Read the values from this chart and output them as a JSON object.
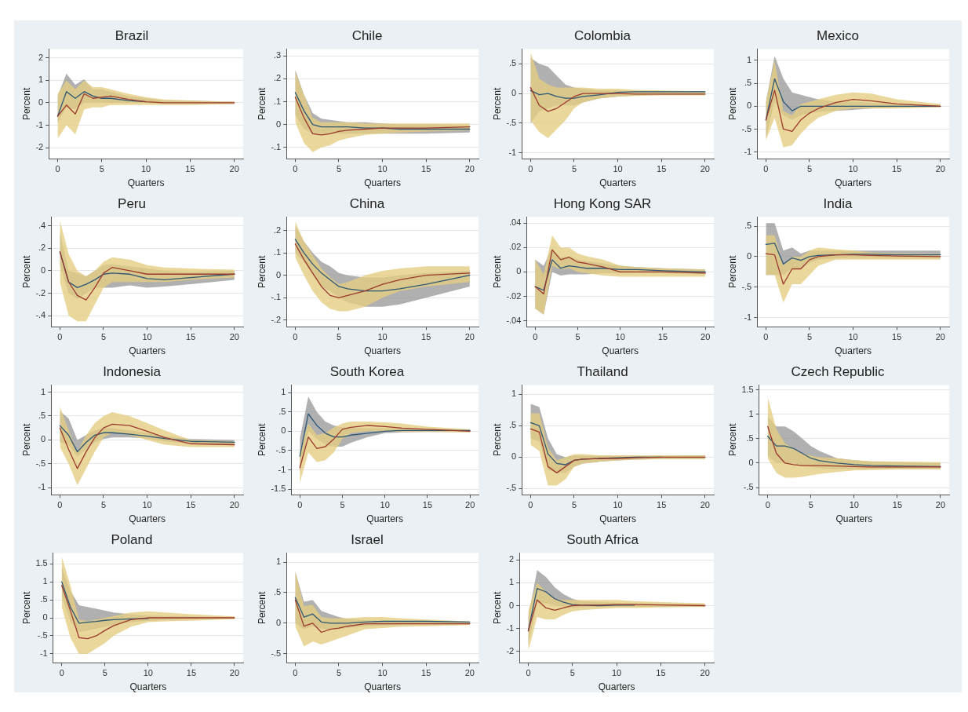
{
  "chart_data": [
    {
      "type": "line",
      "title": "Brazil",
      "xlabel": "Quarters",
      "ylabel": "Percent",
      "x": [
        0,
        1,
        2,
        3,
        4,
        5,
        6,
        8,
        10,
        12,
        15,
        20
      ],
      "xlim": [
        -1,
        21
      ],
      "xticks": [
        0,
        5,
        10,
        15,
        20
      ],
      "ylim": [
        -2.5,
        2.4
      ],
      "yticks": [
        -2,
        -1,
        0,
        1,
        2
      ],
      "grid": "y",
      "legend": false,
      "series": [
        {
          "color": "#2d5775",
          "values": [
            -0.6,
            0.5,
            0.2,
            0.5,
            0.3,
            0.2,
            0.2,
            0.1,
            0.05,
            null,
            null,
            null
          ],
          "lower": [
            -0.9,
            -0.2,
            -0.3,
            0,
            0,
            0,
            0,
            0,
            0,
            -0.05,
            -0.05,
            -0.05
          ],
          "upper": [
            0.3,
            1.3,
            0.8,
            1.05,
            0.6,
            0.6,
            0.5,
            0.3,
            0.2,
            0.1,
            0.1,
            0.05
          ]
        },
        {
          "color": "#9c3a2e",
          "values": [
            -0.6,
            -0.1,
            -0.5,
            0.4,
            0.2,
            0.25,
            0.3,
            0.15,
            0.05,
            0,
            0,
            0
          ],
          "lower": [
            -1.6,
            -1.0,
            -1.4,
            -0.3,
            -0.2,
            -0.2,
            -0.1,
            -0.1,
            -0.1,
            -0.1,
            -0.1,
            -0.05
          ],
          "upper": [
            0.4,
            1.0,
            0.6,
            1.0,
            0.7,
            0.7,
            0.6,
            0.4,
            0.25,
            0.15,
            0.1,
            0.05
          ]
        }
      ]
    },
    {
      "type": "line",
      "title": "Chile",
      "xlabel": "Quarters",
      "ylabel": "Percent",
      "x": [
        0,
        1,
        2,
        3,
        4,
        5,
        6,
        8,
        10,
        12,
        15,
        20
      ],
      "xlim": [
        -1,
        21
      ],
      "xticks": [
        0,
        5,
        10,
        15,
        20
      ],
      "ylim": [
        -0.15,
        0.33
      ],
      "yticks": [
        {
          "value": -0.1,
          "label": "-.1"
        },
        0,
        {
          "value": 0.1,
          "label": ".1"
        },
        {
          "value": 0.2,
          "label": ".2"
        },
        {
          "value": 0.3,
          "label": ".3"
        }
      ],
      "grid": "y",
      "legend": false,
      "series": [
        {
          "color": "#2d5775",
          "values": [
            0.14,
            0.06,
            0,
            -0.01,
            -0.01,
            -0.01,
            -0.01,
            -0.015,
            -0.015,
            -0.02,
            -0.02,
            -0.02
          ],
          "lower": [
            0.04,
            -0.02,
            -0.04,
            -0.04,
            -0.04,
            -0.04,
            -0.04,
            -0.04,
            -0.04,
            -0.04,
            -0.04,
            -0.035
          ],
          "upper": [
            0.24,
            0.13,
            0.05,
            0.025,
            0.02,
            0.015,
            0.01,
            0.01,
            0.005,
            0,
            0,
            -0.005
          ]
        },
        {
          "color": "#9c3a2e",
          "values": [
            0.12,
            0.03,
            -0.04,
            -0.045,
            -0.04,
            -0.03,
            -0.025,
            -0.02,
            -0.015,
            -0.015,
            -0.015,
            -0.01
          ],
          "lower": [
            0.01,
            -0.08,
            -0.12,
            -0.1,
            -0.09,
            -0.07,
            -0.06,
            -0.045,
            -0.04,
            -0.035,
            -0.03,
            -0.025
          ],
          "upper": [
            0.23,
            0.13,
            0.03,
            0.01,
            0.01,
            0.01,
            0.01,
            0.005,
            0.005,
            0.005,
            0.005,
            0.005
          ]
        }
      ]
    },
    {
      "type": "line",
      "title": "Colombia",
      "xlabel": "Quarters",
      "ylabel": "Percent",
      "x": [
        0,
        1,
        2,
        3,
        4,
        5,
        6,
        8,
        10,
        12,
        15,
        20
      ],
      "xlim": [
        -1,
        21
      ],
      "xticks": [
        0,
        5,
        10,
        15,
        20
      ],
      "ylim": [
        -1.1,
        0.75
      ],
      "yticks": [
        -1,
        {
          "value": -0.5,
          "label": "-.5"
        },
        0,
        {
          "value": 0.5,
          "label": ".5"
        }
      ],
      "grid": "y",
      "legend": false,
      "series": [
        {
          "color": "#2d5775",
          "values": [
            0.05,
            -0.02,
            0,
            -0.05,
            -0.08,
            -0.08,
            -0.05,
            -0.02,
            0.02,
            0.03,
            0.03,
            0.03
          ],
          "lower": [
            -0.5,
            -0.3,
            -0.25,
            -0.2,
            -0.2,
            -0.2,
            -0.15,
            -0.08,
            -0.05,
            -0.03,
            -0.02,
            -0.02
          ],
          "upper": [
            0.6,
            0.5,
            0.45,
            0.3,
            0.15,
            0.1,
            0.08,
            0.05,
            0.05,
            0.04,
            0.04,
            0.04
          ]
        },
        {
          "color": "#9c3a2e",
          "values": [
            0.1,
            -0.2,
            -0.3,
            -0.25,
            -0.15,
            -0.05,
            0,
            0,
            0,
            -0.01,
            -0.01,
            -0.01
          ],
          "lower": [
            -0.45,
            -0.65,
            -0.75,
            -0.6,
            -0.45,
            -0.25,
            -0.15,
            -0.08,
            -0.05,
            -0.04,
            -0.03,
            -0.03
          ],
          "upper": [
            0.7,
            0.25,
            0.15,
            0.1,
            0.1,
            0.1,
            0.1,
            0.08,
            0.08,
            0.06,
            0.05,
            0.04
          ]
        }
      ]
    },
    {
      "type": "line",
      "title": "Mexico",
      "xlabel": "Quarters",
      "ylabel": "Percent",
      "x": [
        0,
        1,
        2,
        3,
        4,
        5,
        6,
        8,
        10,
        12,
        15,
        20
      ],
      "xlim": [
        -1,
        21
      ],
      "xticks": [
        0,
        5,
        10,
        15,
        20
      ],
      "ylim": [
        -1.15,
        1.25
      ],
      "yticks": [
        -1,
        {
          "value": -0.5,
          "label": "-.5"
        },
        0,
        {
          "value": 0.5,
          "label": ".5"
        },
        1
      ],
      "grid": "y",
      "legend": false,
      "series": [
        {
          "color": "#2d5775",
          "values": [
            -0.3,
            0.6,
            0.1,
            -0.1,
            0,
            0,
            0,
            0,
            0,
            0,
            0,
            0
          ],
          "lower": [
            -0.7,
            0.1,
            -0.2,
            -0.3,
            -0.2,
            -0.15,
            -0.12,
            -0.1,
            -0.08,
            -0.05,
            -0.03,
            -0.02
          ],
          "upper": [
            0.1,
            1.1,
            0.6,
            0.3,
            0.25,
            0.2,
            0.15,
            0.1,
            0.1,
            0.08,
            0.05,
            0.03
          ]
        },
        {
          "color": "#9c3a2e",
          "values": [
            -0.3,
            0.35,
            -0.5,
            -0.55,
            -0.3,
            -0.15,
            -0.05,
            0.08,
            0.15,
            0.12,
            0.05,
            0
          ],
          "lower": [
            -0.75,
            -0.25,
            -0.9,
            -0.85,
            -0.6,
            -0.4,
            -0.25,
            -0.1,
            -0.05,
            -0.05,
            -0.05,
            -0.02
          ],
          "upper": [
            0.1,
            1.0,
            -0.1,
            -0.2,
            0.05,
            0.1,
            0.15,
            0.25,
            0.3,
            0.28,
            0.15,
            0.05
          ]
        }
      ]
    },
    {
      "type": "line",
      "title": "Peru",
      "xlabel": "Quarters",
      "ylabel": "Percent",
      "x": [
        0,
        1,
        2,
        3,
        4,
        5,
        6,
        8,
        10,
        12,
        15,
        20
      ],
      "xlim": [
        -1,
        21
      ],
      "xticks": [
        0,
        5,
        10,
        15,
        20
      ],
      "ylim": [
        -0.5,
        0.48
      ],
      "yticks": [
        {
          "value": -0.4,
          "label": "-.4"
        },
        {
          "value": -0.2,
          "label": "-.2"
        },
        0,
        {
          "value": 0.2,
          "label": ".2"
        },
        {
          "value": 0.4,
          "label": ".4"
        }
      ],
      "grid": "y",
      "legend": false,
      "series": [
        {
          "color": "#2d5775",
          "values": [
            0.17,
            -0.1,
            -0.15,
            -0.12,
            -0.08,
            -0.03,
            -0.02,
            -0.03,
            -0.07,
            -0.08,
            -0.06,
            -0.03
          ],
          "lower": [
            0.05,
            -0.2,
            -0.25,
            -0.2,
            -0.15,
            -0.15,
            -0.15,
            -0.13,
            -0.15,
            -0.14,
            -0.12,
            -0.08
          ],
          "upper": [
            0.35,
            0,
            -0.02,
            -0.05,
            0,
            0.05,
            0.06,
            0.04,
            0.02,
            0,
            -0.01,
            0
          ]
        },
        {
          "color": "#9c3a2e",
          "values": [
            0.17,
            -0.1,
            -0.22,
            -0.26,
            -0.15,
            -0.02,
            0.03,
            0,
            -0.03,
            -0.03,
            -0.03,
            -0.03
          ],
          "lower": [
            -0.1,
            -0.4,
            -0.45,
            -0.45,
            -0.3,
            -0.15,
            -0.1,
            -0.1,
            -0.1,
            -0.1,
            -0.08,
            -0.06
          ],
          "upper": [
            0.45,
            0.15,
            0,
            -0.05,
            0,
            0.08,
            0.12,
            0.1,
            0.05,
            0.03,
            0.02,
            0.01
          ]
        }
      ]
    },
    {
      "type": "line",
      "title": "China",
      "xlabel": "Quarters",
      "ylabel": "Percent",
      "x": [
        0,
        1,
        2,
        3,
        4,
        5,
        6,
        8,
        10,
        12,
        15,
        20
      ],
      "xlim": [
        -1,
        21
      ],
      "xticks": [
        0,
        5,
        10,
        15,
        20
      ],
      "ylim": [
        -0.23,
        0.26
      ],
      "yticks": [
        {
          "value": -0.2,
          "label": "-.2"
        },
        {
          "value": -0.1,
          "label": "-.1"
        },
        0,
        {
          "value": 0.1,
          "label": ".1"
        },
        {
          "value": 0.2,
          "label": ".2"
        }
      ],
      "grid": "y",
      "legend": false,
      "series": [
        {
          "color": "#2d5775",
          "values": [
            0.16,
            0.1,
            0.05,
            0.01,
            -0.02,
            -0.05,
            -0.06,
            -0.07,
            -0.07,
            -0.06,
            -0.04,
            0
          ],
          "lower": [
            0.1,
            0.06,
            0,
            -0.05,
            -0.07,
            -0.1,
            -0.12,
            -0.14,
            -0.14,
            -0.13,
            -0.1,
            -0.05
          ],
          "upper": [
            0.22,
            0.15,
            0.1,
            0.06,
            0.04,
            0.01,
            0,
            -0.01,
            -0.01,
            0,
            0.01,
            0.02
          ]
        },
        {
          "color": "#9c3a2e",
          "values": [
            0.14,
            0.07,
            0.01,
            -0.05,
            -0.09,
            -0.1,
            -0.09,
            -0.07,
            -0.04,
            -0.02,
            0,
            0.01
          ],
          "lower": [
            0.08,
            0,
            -0.07,
            -0.12,
            -0.15,
            -0.16,
            -0.16,
            -0.14,
            -0.1,
            -0.07,
            -0.05,
            -0.03
          ],
          "upper": [
            0.24,
            0.15,
            0.09,
            0.03,
            -0.01,
            -0.04,
            -0.03,
            0,
            0.02,
            0.03,
            0.04,
            0.04
          ]
        }
      ]
    },
    {
      "type": "line",
      "title": "Hong Kong SAR",
      "xlabel": "Quarters",
      "ylabel": "Percent",
      "x": [
        0,
        1,
        2,
        3,
        4,
        5,
        6,
        8,
        10,
        12,
        15,
        20
      ],
      "xlim": [
        -1,
        21
      ],
      "xticks": [
        0,
        5,
        10,
        15,
        20
      ],
      "ylim": [
        -0.045,
        0.045
      ],
      "yticks": [
        {
          "value": -0.04,
          "label": "-.04"
        },
        {
          "value": -0.02,
          "label": "-.02"
        },
        0,
        {
          "value": 0.02,
          "label": ".02"
        },
        {
          "value": 0.04,
          "label": ".04"
        }
      ],
      "grid": "y",
      "legend": false,
      "series": [
        {
          "color": "#2d5775",
          "values": [
            -0.012,
            -0.015,
            0.01,
            0.003,
            0.005,
            0.004,
            0.003,
            0.003,
            0.002,
            0.002,
            0.001,
            0
          ],
          "lower": [
            -0.03,
            -0.035,
            0,
            -0.003,
            -0.002,
            -0.002,
            -0.002,
            -0.001,
            -0.001,
            -0.001,
            -0.001,
            -0.002
          ],
          "upper": [
            0.01,
            0.005,
            0.02,
            0.012,
            0.013,
            0.01,
            0.009,
            0.007,
            0.005,
            0.004,
            0.003,
            0.002
          ]
        },
        {
          "color": "#9c3a2e",
          "values": [
            -0.012,
            -0.018,
            0.018,
            0.01,
            0.012,
            0.008,
            0.007,
            0.004,
            0,
            0,
            0,
            -0.001
          ],
          "lower": [
            -0.03,
            -0.035,
            0.005,
            0.002,
            0.003,
            0,
            -0.001,
            -0.003,
            -0.004,
            -0.004,
            -0.004,
            -0.004
          ],
          "upper": [
            0.01,
            -0.002,
            0.03,
            0.02,
            0.02,
            0.015,
            0.013,
            0.01,
            0.005,
            0.004,
            0.003,
            0.002
          ]
        }
      ]
    },
    {
      "type": "line",
      "title": "India",
      "xlabel": "Quarters",
      "ylabel": "Percent",
      "x": [
        0,
        1,
        2,
        3,
        4,
        5,
        6,
        8,
        10,
        12,
        15,
        20
      ],
      "xlim": [
        -1,
        21
      ],
      "xticks": [
        0,
        5,
        10,
        15,
        20
      ],
      "ylim": [
        -1.15,
        0.65
      ],
      "yticks": [
        -1,
        {
          "value": -0.5,
          "label": "-.5"
        },
        0,
        {
          "value": 0.5,
          "label": ".5"
        }
      ],
      "grid": "y",
      "legend": false,
      "series": [
        {
          "color": "#2d5775",
          "values": [
            0.2,
            0.22,
            -0.12,
            -0.02,
            -0.06,
            0,
            0.02,
            0.03,
            0.04,
            0.04,
            0.03,
            0.03
          ],
          "lower": [
            -0.3,
            -0.3,
            -0.3,
            -0.2,
            -0.2,
            -0.1,
            -0.05,
            -0.03,
            -0.02,
            -0.02,
            -0.02,
            -0.02
          ],
          "upper": [
            0.55,
            0.55,
            0.1,
            0.15,
            0.05,
            0.1,
            0.1,
            0.1,
            0.1,
            0.1,
            0.1,
            0.1
          ]
        },
        {
          "color": "#9c3a2e",
          "values": [
            0.05,
            0.03,
            -0.45,
            -0.2,
            -0.2,
            -0.05,
            0,
            0.03,
            0.03,
            0.02,
            0.01,
            0
          ],
          "lower": [
            -0.3,
            -0.3,
            -0.75,
            -0.45,
            -0.45,
            -0.3,
            -0.15,
            -0.05,
            -0.05,
            -0.05,
            -0.05,
            -0.05
          ],
          "upper": [
            0.35,
            0.35,
            -0.15,
            0,
            0,
            0.1,
            0.15,
            0.12,
            0.1,
            0.07,
            0.05,
            0.04
          ]
        }
      ]
    },
    {
      "type": "line",
      "title": "Indonesia",
      "xlabel": "Quarters",
      "ylabel": "Percent",
      "x": [
        0,
        1,
        2,
        3,
        4,
        5,
        6,
        8,
        10,
        12,
        15,
        20
      ],
      "xlim": [
        -1,
        21
      ],
      "xticks": [
        0,
        5,
        10,
        15,
        20
      ],
      "ylim": [
        -1.15,
        1.15
      ],
      "yticks": [
        -1,
        {
          "value": -0.5,
          "label": "-.5"
        },
        0,
        {
          "value": 0.5,
          "label": ".5"
        },
        1
      ],
      "grid": "y",
      "legend": false,
      "series": [
        {
          "color": "#2d5775",
          "values": [
            0.3,
            0.1,
            -0.25,
            -0.05,
            0.1,
            0.15,
            0.15,
            0.12,
            0.08,
            0.03,
            -0.03,
            -0.05
          ],
          "lower": [
            -0.05,
            -0.1,
            -0.35,
            -0.2,
            -0.05,
            0.02,
            0.05,
            0.05,
            0.03,
            -0.03,
            -0.08,
            -0.1
          ],
          "upper": [
            0.6,
            0.45,
            0,
            0.1,
            0.2,
            0.25,
            0.25,
            0.2,
            0.15,
            0.08,
            0.02,
            0
          ]
        },
        {
          "color": "#9c3a2e",
          "values": [
            0.25,
            -0.2,
            -0.6,
            -0.25,
            0.05,
            0.25,
            0.33,
            0.3,
            0.18,
            0.05,
            -0.08,
            -0.1
          ],
          "lower": [
            -0.15,
            -0.5,
            -0.95,
            -0.6,
            -0.25,
            0.05,
            0.15,
            0.1,
            0,
            -0.1,
            -0.15,
            -0.15
          ],
          "upper": [
            0.7,
            0.2,
            -0.25,
            0.1,
            0.35,
            0.5,
            0.58,
            0.5,
            0.35,
            0.2,
            0,
            -0.03
          ]
        }
      ]
    },
    {
      "type": "line",
      "title": "South Korea",
      "xlabel": "Quarters",
      "ylabel": "Percent",
      "x": [
        0,
        1,
        2,
        3,
        4,
        5,
        6,
        8,
        10,
        12,
        15,
        20
      ],
      "xlim": [
        -1,
        21
      ],
      "xticks": [
        0,
        5,
        10,
        15,
        20
      ],
      "ylim": [
        -1.65,
        1.2
      ],
      "yticks": [
        {
          "value": -1.5,
          "label": "-1.5"
        },
        -1,
        {
          "value": -0.5,
          "label": "-.5"
        },
        0,
        {
          "value": 0.5,
          "label": ".5"
        },
        1
      ],
      "grid": "y",
      "legend": false,
      "series": [
        {
          "color": "#2d5775",
          "values": [
            -0.65,
            0.45,
            0.15,
            -0.05,
            -0.15,
            -0.15,
            -0.1,
            -0.05,
            0,
            0.02,
            0.02,
            0.02
          ],
          "lower": [
            -1.1,
            0,
            -0.2,
            -0.35,
            -0.4,
            -0.4,
            -0.3,
            -0.15,
            -0.05,
            -0.03,
            -0.02,
            -0.02
          ],
          "upper": [
            -0.2,
            0.9,
            0.5,
            0.25,
            0.15,
            0.1,
            0.1,
            0.08,
            0.08,
            0.08,
            0.06,
            0.05
          ]
        },
        {
          "color": "#9c3a2e",
          "values": [
            -0.95,
            -0.15,
            -0.45,
            -0.4,
            -0.2,
            0.05,
            0.1,
            0.15,
            0.12,
            0.08,
            0.05,
            0
          ],
          "lower": [
            -1.35,
            -0.55,
            -0.8,
            -0.75,
            -0.55,
            -0.2,
            -0.05,
            0,
            0,
            -0.02,
            -0.02,
            -0.03
          ],
          "upper": [
            -0.5,
            0.2,
            -0.1,
            -0.05,
            0.1,
            0.2,
            0.25,
            0.25,
            0.23,
            0.2,
            0.12,
            0.05
          ]
        }
      ]
    },
    {
      "type": "line",
      "title": "Thailand",
      "xlabel": "Quarters",
      "ylabel": "Percent",
      "x": [
        0,
        1,
        2,
        3,
        4,
        5,
        6,
        8,
        10,
        12,
        15,
        20
      ],
      "xlim": [
        -1,
        21
      ],
      "xticks": [
        0,
        5,
        10,
        15,
        20
      ],
      "ylim": [
        -0.6,
        1.15
      ],
      "yticks": [
        {
          "value": -0.5,
          "label": "-.5"
        },
        0,
        {
          "value": 0.5,
          "label": ".5"
        },
        1
      ],
      "grid": "y",
      "legend": false,
      "series": [
        {
          "color": "#2d5775",
          "values": [
            0.55,
            0.5,
            0.05,
            -0.1,
            -0.12,
            -0.05,
            -0.03,
            -0.02,
            -0.01,
            0,
            0,
            null
          ],
          "lower": [
            0.3,
            0.25,
            -0.2,
            -0.25,
            -0.25,
            -0.15,
            -0.1,
            -0.07,
            -0.05,
            -0.04,
            -0.03,
            -0.03
          ],
          "upper": [
            0.85,
            0.8,
            0.3,
            0.05,
            0,
            0.03,
            0.02,
            0.02,
            0.02,
            0.02,
            0.02,
            0.03
          ]
        },
        {
          "color": "#9c3a2e",
          "values": [
            0.45,
            0.4,
            -0.15,
            -0.25,
            -0.15,
            -0.05,
            -0.03,
            -0.02,
            -0.02,
            -0.01,
            0,
            0
          ],
          "lower": [
            0.2,
            0.1,
            -0.45,
            -0.45,
            -0.35,
            -0.15,
            -0.1,
            -0.07,
            -0.05,
            -0.04,
            -0.03,
            -0.03
          ],
          "upper": [
            0.7,
            0.7,
            0.15,
            -0.05,
            0,
            0.05,
            0.05,
            0.03,
            0.03,
            0.03,
            0.03,
            0.03
          ]
        }
      ]
    },
    {
      "type": "line",
      "title": "Czech Republic",
      "xlabel": "Quarters",
      "ylabel": "Percent",
      "x": [
        0,
        1,
        2,
        3,
        4,
        5,
        6,
        8,
        10,
        12,
        15,
        20
      ],
      "xlim": [
        -1,
        21
      ],
      "xticks": [
        0,
        5,
        10,
        15,
        20
      ],
      "ylim": [
        -0.65,
        1.6
      ],
      "yticks": [
        {
          "value": -0.5,
          "label": "-.5"
        },
        0,
        {
          "value": 0.5,
          "label": ".5"
        },
        1,
        1.5
      ],
      "grid": "y",
      "legend": false,
      "series": [
        {
          "color": "#2d5775",
          "values": [
            0.55,
            0.35,
            0.35,
            0.3,
            0.2,
            0.1,
            0.05,
            0,
            -0.03,
            -0.05,
            -0.06,
            -0.07
          ],
          "lower": [
            0.15,
            0,
            0,
            0,
            -0.05,
            -0.08,
            -0.1,
            -0.12,
            -0.12,
            -0.12,
            -0.12,
            -0.12
          ],
          "upper": [
            0.95,
            0.75,
            0.75,
            0.65,
            0.5,
            0.35,
            0.25,
            0.1,
            0.06,
            0.03,
            0.02,
            0
          ]
        },
        {
          "color": "#9c3a2e",
          "values": [
            0.75,
            0.2,
            0,
            -0.03,
            -0.05,
            -0.05,
            -0.05,
            -0.06,
            -0.07,
            -0.08,
            -0.08,
            -0.08
          ],
          "lower": [
            0.1,
            -0.2,
            -0.3,
            -0.3,
            -0.28,
            -0.25,
            -0.22,
            -0.18,
            -0.15,
            -0.14,
            -0.13,
            -0.13
          ],
          "upper": [
            1.35,
            0.7,
            0.4,
            0.3,
            0.2,
            0.15,
            0.12,
            0.1,
            0.06,
            0.04,
            0.03,
            0.02
          ]
        }
      ]
    },
    {
      "type": "line",
      "title": "Poland",
      "xlabel": "Quarters",
      "ylabel": "Percent",
      "x": [
        0,
        1,
        2,
        3,
        4,
        5,
        6,
        8,
        10,
        12,
        15,
        20
      ],
      "xlim": [
        -1,
        21
      ],
      "xticks": [
        0,
        5,
        10,
        15,
        20
      ],
      "ylim": [
        -1.25,
        1.8
      ],
      "yticks": [
        -1,
        {
          "value": -0.5,
          "label": "-.5"
        },
        0,
        {
          "value": 0.5,
          "label": ".5"
        },
        1,
        1.5
      ],
      "grid": "y",
      "legend": false,
      "series": [
        {
          "color": "#2d5775",
          "values": [
            1.0,
            0.3,
            -0.15,
            -0.12,
            -0.1,
            -0.07,
            -0.05,
            -0.03,
            -0.02,
            null,
            null,
            null
          ],
          "lower": [
            0.6,
            -0.1,
            -0.4,
            -0.35,
            -0.3,
            -0.25,
            -0.2,
            -0.12,
            -0.08,
            -0.06,
            -0.04,
            -0.02
          ],
          "upper": [
            1.4,
            0.75,
            0.35,
            0.3,
            0.25,
            0.2,
            0.15,
            0.1,
            0.06,
            0.05,
            0.04,
            0.03
          ]
        },
        {
          "color": "#9c3a2e",
          "values": [
            0.9,
            0.2,
            -0.55,
            -0.58,
            -0.5,
            -0.35,
            -0.22,
            -0.05,
            0,
            0,
            0,
            0
          ],
          "lower": [
            0.3,
            -0.55,
            -1.0,
            -1.0,
            -0.85,
            -0.7,
            -0.5,
            -0.25,
            -0.12,
            -0.1,
            -0.08,
            -0.04
          ],
          "upper": [
            1.7,
            0.9,
            -0.05,
            -0.1,
            -0.05,
            0,
            0.05,
            0.15,
            0.18,
            0.15,
            0.1,
            0.04
          ]
        }
      ]
    },
    {
      "type": "line",
      "title": "Israel",
      "xlabel": "Quarters",
      "ylabel": "Percent",
      "x": [
        0,
        1,
        2,
        3,
        4,
        5,
        6,
        8,
        10,
        12,
        15,
        20
      ],
      "xlim": [
        -1,
        21
      ],
      "xticks": [
        0,
        5,
        10,
        15,
        20
      ],
      "ylim": [
        -0.65,
        1.15
      ],
      "yticks": [
        {
          "value": -0.5,
          "label": "-.5"
        },
        0,
        {
          "value": 0.5,
          "label": ".5"
        },
        1
      ],
      "grid": "y",
      "legend": false,
      "series": [
        {
          "color": "#2d5775",
          "values": [
            0.42,
            0.1,
            0.15,
            0.02,
            0,
            0,
            0,
            0.02,
            0.03,
            0.03,
            0.03,
            0.02
          ],
          "lower": [
            0,
            -0.1,
            -0.05,
            -0.1,
            -0.1,
            -0.1,
            -0.08,
            -0.05,
            -0.04,
            -0.03,
            -0.02,
            -0.02
          ],
          "upper": [
            0.85,
            0.35,
            0.38,
            0.2,
            0.15,
            0.1,
            0.07,
            0.05,
            0.04,
            0.03,
            0.02,
            0.02
          ]
        },
        {
          "color": "#9c3a2e",
          "values": [
            0.38,
            -0.05,
            0,
            -0.15,
            -0.1,
            -0.08,
            -0.05,
            -0.01,
            -0.01,
            -0.01,
            -0.01,
            -0.01
          ],
          "lower": [
            -0.05,
            -0.38,
            -0.3,
            -0.35,
            -0.3,
            -0.25,
            -0.2,
            -0.1,
            -0.08,
            -0.06,
            -0.05,
            -0.03
          ],
          "upper": [
            0.85,
            0.28,
            0.3,
            0.1,
            0.08,
            0.08,
            0.08,
            0.1,
            0.1,
            0.08,
            0.06,
            0.03
          ]
        }
      ]
    },
    {
      "type": "line",
      "title": "South Africa",
      "xlabel": "Quarters",
      "ylabel": "Percent",
      "x": [
        0,
        1,
        2,
        3,
        4,
        5,
        6,
        8,
        10,
        12,
        15,
        20
      ],
      "xlim": [
        -1,
        21
      ],
      "xticks": [
        0,
        5,
        10,
        15,
        20
      ],
      "ylim": [
        -2.5,
        2.3
      ],
      "yticks": [
        -2,
        -1,
        0,
        1,
        2
      ],
      "grid": "y",
      "legend": false,
      "series": [
        {
          "color": "#2d5775",
          "values": [
            -1.1,
            0.75,
            0.6,
            0.3,
            0.15,
            0.05,
            0.02,
            0,
            0.02,
            0.02,
            null,
            null
          ],
          "lower": [
            -1.7,
            0.1,
            0.1,
            0,
            -0.05,
            -0.1,
            -0.08,
            -0.05,
            -0.05,
            -0.05,
            -0.05,
            -0.05
          ],
          "upper": [
            -0.5,
            1.55,
            1.25,
            0.8,
            0.5,
            0.3,
            0.2,
            0.15,
            0.12,
            0.1,
            0.08,
            0.05
          ]
        },
        {
          "color": "#9c3a2e",
          "values": [
            -1.1,
            0.25,
            -0.1,
            -0.2,
            -0.1,
            0,
            0.02,
            0.02,
            0.05,
            0.05,
            0.03,
            0
          ],
          "lower": [
            -2.0,
            -0.5,
            -0.6,
            -0.6,
            -0.4,
            -0.25,
            -0.2,
            -0.15,
            -0.1,
            -0.1,
            -0.08,
            -0.05
          ],
          "upper": [
            -0.2,
            1.0,
            0.6,
            0.3,
            0.25,
            0.25,
            0.25,
            0.25,
            0.25,
            0.2,
            0.15,
            0.1
          ]
        }
      ]
    }
  ]
}
